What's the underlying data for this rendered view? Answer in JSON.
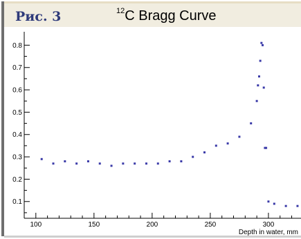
{
  "figure": {
    "label": "Рис. 3",
    "title_sup": "12",
    "title_main": "C Bragg Curve"
  },
  "colors": {
    "marker": "#3a3aa8",
    "axis": "#000000",
    "caption_band": "#f1ede0",
    "caption_text": "#2e3a7a"
  },
  "chart_data": {
    "type": "scatter",
    "title": "12C Bragg Curve",
    "xlabel": "Depth in water, mm",
    "ylabel": "",
    "xlim": [
      90,
      328
    ],
    "ylim": [
      0.025,
      0.86
    ],
    "grid": false,
    "x_ticks": [
      100,
      150,
      200,
      250,
      300
    ],
    "y_ticks": [
      0.1,
      0.2,
      0.3,
      0.4,
      0.5,
      0.6,
      0.7,
      0.8
    ],
    "x_tick_labels": [
      "100",
      "150",
      "200",
      "250",
      "300"
    ],
    "y_tick_labels": [
      "0.1",
      "0.2",
      "0.3",
      "0.4",
      "0.5",
      "0.6",
      "0.7",
      "0.8"
    ],
    "series": [
      {
        "x": [
          105,
          115,
          125,
          135,
          145,
          155,
          165,
          175,
          185,
          195,
          205,
          215,
          225,
          235,
          245,
          255,
          265,
          275,
          285,
          290,
          291,
          292,
          293,
          294,
          295,
          296,
          297,
          298,
          300,
          305,
          315,
          325
        ],
        "y": [
          0.29,
          0.27,
          0.28,
          0.27,
          0.28,
          0.27,
          0.26,
          0.27,
          0.27,
          0.27,
          0.27,
          0.28,
          0.28,
          0.3,
          0.32,
          0.35,
          0.36,
          0.39,
          0.45,
          0.55,
          0.62,
          0.66,
          0.73,
          0.81,
          0.8,
          0.61,
          0.34,
          0.34,
          0.1,
          0.09,
          0.08,
          0.08
        ]
      }
    ]
  }
}
